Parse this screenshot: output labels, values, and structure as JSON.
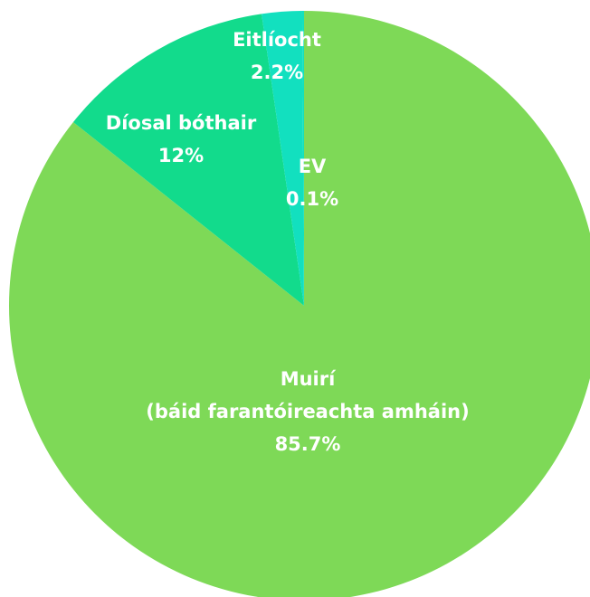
{
  "chart_data": {
    "type": "pie",
    "categories": [
      "Muirí\n(báid farantóireachta amháin)",
      "Díosal bóthair",
      "Eitlíocht",
      "EV"
    ],
    "values": [
      85.7,
      12,
      2.2,
      0.1
    ],
    "value_labels": [
      "85.7%",
      "12%",
      "2.2%",
      "0.1%"
    ],
    "colors": [
      "#7ed957",
      "#12db8c",
      "#12e0bf",
      "#12e0bf"
    ]
  }
}
